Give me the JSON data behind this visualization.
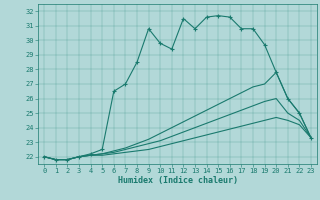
{
  "bg_color": "#b2d8d8",
  "line_color": "#1a7a6e",
  "xlabel": "Humidex (Indice chaleur)",
  "xlim": [
    -0.5,
    23.5
  ],
  "ylim": [
    21.5,
    32.5
  ],
  "xticks": [
    0,
    1,
    2,
    3,
    4,
    5,
    6,
    7,
    8,
    9,
    10,
    11,
    12,
    13,
    14,
    15,
    16,
    17,
    18,
    19,
    20,
    21,
    22,
    23
  ],
  "yticks": [
    22,
    23,
    24,
    25,
    26,
    27,
    28,
    29,
    30,
    31,
    32
  ],
  "s1_x": [
    0,
    1,
    2,
    3,
    4,
    5,
    6,
    7,
    8,
    9,
    10,
    11,
    12,
    13,
    14,
    15,
    16,
    17,
    18,
    19,
    20,
    21,
    22,
    23
  ],
  "s1_y": [
    22.0,
    21.8,
    21.8,
    22.0,
    22.2,
    22.5,
    26.5,
    27.0,
    28.5,
    30.8,
    29.8,
    29.4,
    31.5,
    30.8,
    31.6,
    31.7,
    31.6,
    30.8,
    30.8,
    29.7,
    27.8,
    26.0,
    25.0,
    23.3
  ],
  "s2_x": [
    0,
    1,
    2,
    3,
    4,
    5,
    6,
    7,
    8,
    9,
    10,
    11,
    12,
    13,
    14,
    15,
    16,
    17,
    18,
    19,
    20,
    21,
    22,
    23
  ],
  "s2_y": [
    22.0,
    21.8,
    21.8,
    22.0,
    22.1,
    22.2,
    22.4,
    22.6,
    22.9,
    23.2,
    23.6,
    24.0,
    24.4,
    24.8,
    25.2,
    25.6,
    26.0,
    26.4,
    26.8,
    27.0,
    27.8,
    26.0,
    25.0,
    23.3
  ],
  "s3_x": [
    0,
    1,
    2,
    3,
    4,
    5,
    6,
    7,
    8,
    9,
    10,
    11,
    12,
    13,
    14,
    15,
    16,
    17,
    18,
    19,
    20,
    21,
    22,
    23
  ],
  "s3_y": [
    22.0,
    21.8,
    21.8,
    22.0,
    22.1,
    22.2,
    22.3,
    22.5,
    22.7,
    22.9,
    23.1,
    23.4,
    23.7,
    24.0,
    24.3,
    24.6,
    24.9,
    25.2,
    25.5,
    25.8,
    26.0,
    25.0,
    24.5,
    23.3
  ],
  "s4_x": [
    0,
    1,
    2,
    3,
    4,
    5,
    6,
    7,
    8,
    9,
    10,
    11,
    12,
    13,
    14,
    15,
    16,
    17,
    18,
    19,
    20,
    21,
    22,
    23
  ],
  "s4_y": [
    22.0,
    21.8,
    21.8,
    22.0,
    22.1,
    22.1,
    22.2,
    22.3,
    22.4,
    22.5,
    22.7,
    22.9,
    23.1,
    23.3,
    23.5,
    23.7,
    23.9,
    24.1,
    24.3,
    24.5,
    24.7,
    24.5,
    24.2,
    23.3
  ]
}
